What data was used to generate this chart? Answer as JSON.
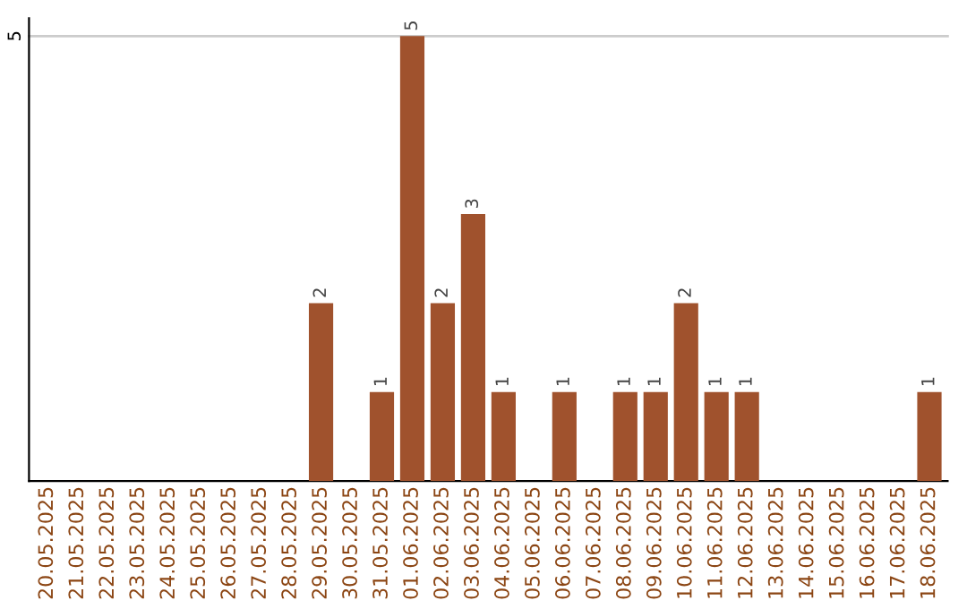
{
  "chart_data": {
    "type": "bar",
    "categories": [
      "20.05.2025",
      "21.05.2025",
      "22.05.2025",
      "23.05.2025",
      "24.05.2025",
      "25.05.2025",
      "26.05.2025",
      "27.05.2025",
      "28.05.2025",
      "29.05.2025",
      "30.05.2025",
      "31.05.2025",
      "01.06.2025",
      "02.06.2025",
      "03.06.2025",
      "04.06.2025",
      "05.06.2025",
      "06.06.2025",
      "07.06.2025",
      "08.06.2025",
      "09.06.2025",
      "10.06.2025",
      "11.06.2025",
      "12.06.2025",
      "13.06.2025",
      "14.06.2025",
      "15.06.2025",
      "16.06.2025",
      "17.06.2025",
      "18.06.2025"
    ],
    "values": [
      0,
      0,
      0,
      0,
      0,
      0,
      0,
      0,
      0,
      2,
      0,
      1,
      5,
      2,
      3,
      1,
      0,
      1,
      0,
      1,
      1,
      2,
      1,
      1,
      0,
      0,
      0,
      0,
      0,
      1
    ],
    "value_labels": [
      null,
      null,
      null,
      null,
      null,
      null,
      null,
      null,
      null,
      "2",
      null,
      "1",
      "5",
      "2",
      "3",
      "1",
      null,
      "1",
      null,
      "1",
      "1",
      "2",
      "1",
      "1",
      null,
      null,
      null,
      null,
      null,
      "1"
    ],
    "color": "#a0522d",
    "ylim": [
      0,
      5.2
    ],
    "yticks": [
      5
    ],
    "grid": "y"
  }
}
